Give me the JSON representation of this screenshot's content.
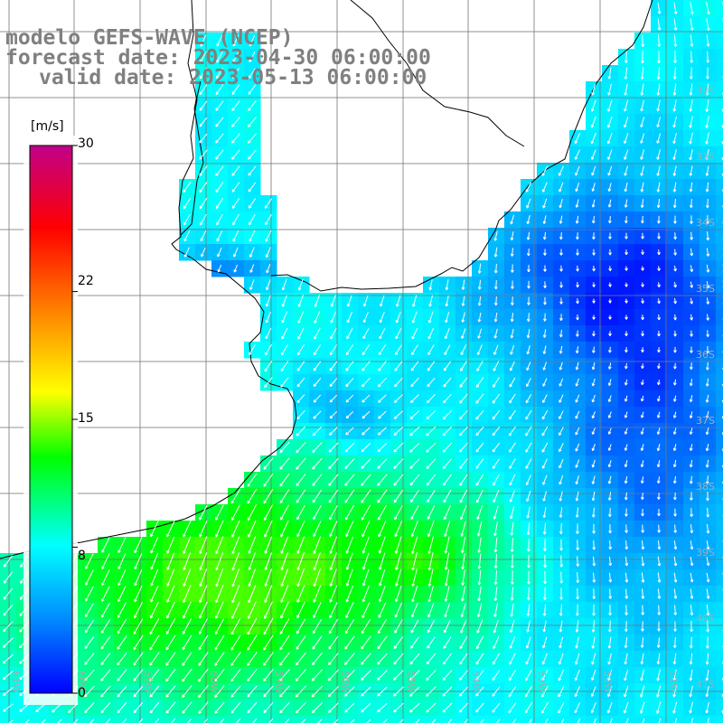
{
  "title": {
    "line1": "modelo GEFS-WAVE (NCEP)",
    "line2": "forecast date: 2023-04-30 06:00:00",
    "line3": "valid date: 2023-05-13 06:00:00"
  },
  "colorbar": {
    "unit": "[m/s]",
    "ticks": [
      "30",
      "22",
      "15",
      "8",
      "0"
    ],
    "tick_values": [
      30,
      22,
      15,
      8,
      0
    ],
    "range": [
      0,
      30
    ],
    "colors": [
      "#0000ff",
      "#0090ff",
      "#00ffff",
      "#00ff00",
      "#ffff00",
      "#ff8000",
      "#ff0000",
      "#c0008a"
    ]
  },
  "map": {
    "lat_labels": [
      "32S",
      "33S",
      "34S",
      "35S",
      "36S",
      "37S",
      "38S",
      "39S",
      "40S",
      "41S"
    ],
    "lon_labels": [
      "61W",
      "60W",
      "59W",
      "58W",
      "57W",
      "56W",
      "55W",
      "54W",
      "53W",
      "52W",
      "51W"
    ],
    "extent": {
      "lon": [
        -62,
        -51
      ],
      "lat": [
        -41.3,
        -31.6
      ]
    }
  }
}
